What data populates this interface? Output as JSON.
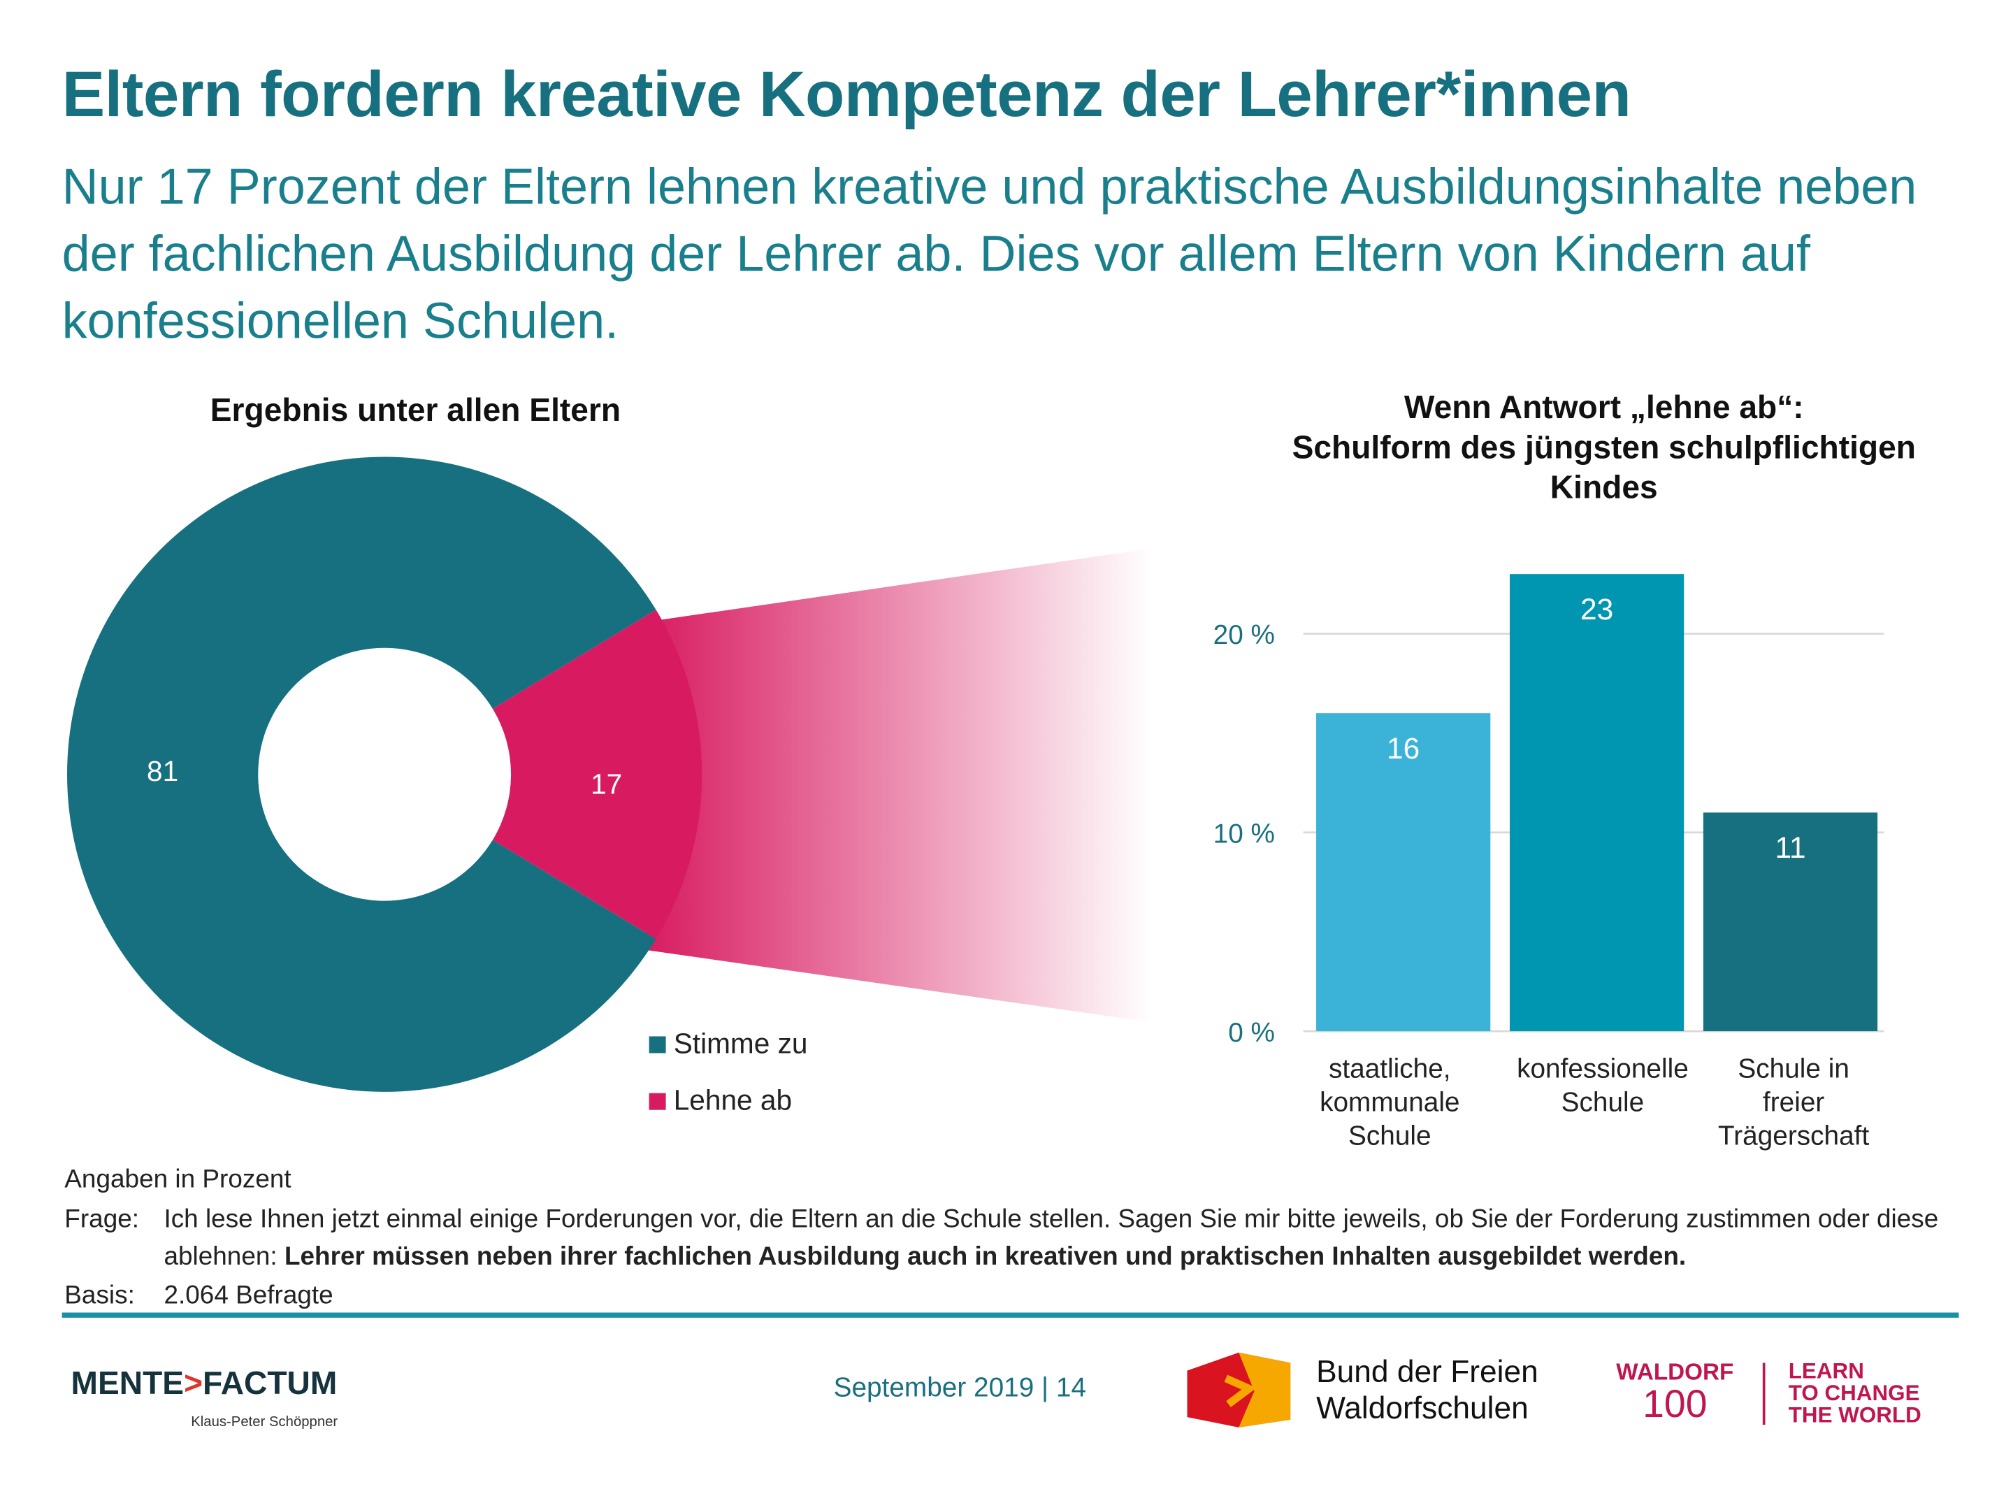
{
  "header": {
    "title": "Eltern fordern kreative Kompetenz der Lehrer*innen",
    "subtitle": "Nur 17 Prozent der Eltern lehnen kreative und praktische Ausbildungsinhalte neben der fachlichen Ausbildung der Lehrer ab. Dies vor allem Eltern von Kindern auf konfessionellen Schulen."
  },
  "chart_data": [
    {
      "type": "pie",
      "title": "Ergebnis unter allen Eltern",
      "donut": true,
      "categories": [
        "Stimme zu",
        "Lehne ab"
      ],
      "values": [
        81,
        17
      ],
      "colors": [
        "#16707f",
        "#d81b60"
      ],
      "legend_placement": "bottom-right"
    },
    {
      "type": "bar",
      "title_lines": [
        "Wenn Antwort „lehne ab“:",
        "Schulform des jüngsten schulpflichtigen",
        "Kindes"
      ],
      "categories": [
        [
          "staatliche,",
          "kommunale",
          "Schule"
        ],
        [
          "konfessionelle",
          "Schule"
        ],
        [
          "Schule in",
          "freier",
          "Trägerschaft"
        ]
      ],
      "values": [
        16,
        23,
        11
      ],
      "colors": [
        "#3bb3d8",
        "#0096b1",
        "#16707f"
      ],
      "ylim": [
        0,
        25
      ],
      "yticks": [
        0,
        10,
        20
      ],
      "ytick_labels": [
        "0 %",
        "10 %",
        "20 %"
      ],
      "grid": true,
      "xlabel": "",
      "ylabel": ""
    }
  ],
  "notes": {
    "unit": "Angaben in Prozent",
    "question_label": "Frage:",
    "question_text": "Ich lese Ihnen jetzt einmal einige Forderungen vor, die Eltern an die Schule stellen. Sagen Sie mir bitte jeweils, ob Sie der Forderung zustimmen oder diese ablehnen:",
    "question_bold": "Lehrer müssen neben ihrer fachlichen Ausbildung auch in kreativen und praktischen Inhalten ausgebildet werden.",
    "basis_label": "Basis:",
    "basis_text": "2.064 Befragte"
  },
  "footer": {
    "brand_left": "MENTE",
    "brand_right": "FACTUM",
    "author": "Klaus-Peter Schöppner",
    "date_page": "September 2019 | 14",
    "bund_line1": "Bund der Freien",
    "bund_line2": "Waldorfschulen",
    "waldorf": "WALDORF",
    "hundred": "100",
    "slogan": [
      "LEARN",
      "TO CHANGE",
      "THE WORLD"
    ]
  }
}
